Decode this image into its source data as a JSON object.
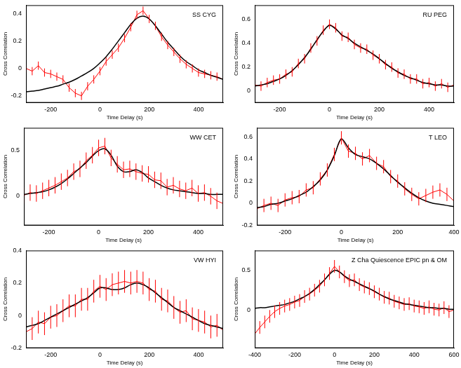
{
  "chart_data": [
    {
      "type": "line",
      "title": "SS CYG",
      "xlabel": "Time Delay (s)",
      "ylabel": "Cross Correlation",
      "grid": false,
      "x": [
        -300,
        -275,
        -250,
        -225,
        -200,
        -175,
        -150,
        -125,
        -100,
        -75,
        -50,
        -25,
        0,
        25,
        50,
        75,
        100,
        125,
        150,
        175,
        200,
        225,
        250,
        275,
        300,
        325,
        350,
        375,
        400,
        425,
        450,
        475,
        500
      ],
      "xlim": [
        -300,
        500
      ],
      "xticks": [
        -200,
        0,
        200,
        400
      ],
      "ylim": [
        -0.25,
        0.46
      ],
      "yticks": [
        -0.2,
        0,
        0.2,
        0.4
      ],
      "series": [
        {
          "color": "#ff0000",
          "line_style": "solid",
          "values": [
            0.0,
            -0.02,
            0.02,
            -0.03,
            -0.04,
            -0.06,
            -0.08,
            -0.14,
            -0.18,
            -0.2,
            -0.13,
            -0.08,
            -0.02,
            0.05,
            0.1,
            0.15,
            0.22,
            0.3,
            0.39,
            0.42,
            0.36,
            0.31,
            0.23,
            0.17,
            0.12,
            0.07,
            0.03,
            0.0,
            -0.03,
            -0.04,
            -0.05,
            -0.06,
            -0.08
          ],
          "errors": [
            0.03,
            0.03,
            0.03,
            0.03,
            0.03,
            0.03,
            0.03,
            0.03,
            0.03,
            0.03,
            0.03,
            0.03,
            0.03,
            0.03,
            0.03,
            0.03,
            0.03,
            0.03,
            0.03,
            0.03,
            0.03,
            0.03,
            0.03,
            0.03,
            0.03,
            0.03,
            0.03,
            0.03,
            0.03,
            0.03,
            0.03,
            0.03,
            0.03
          ]
        },
        {
          "color": "#000000",
          "line_style": "solid",
          "values": [
            -0.17,
            -0.165,
            -0.16,
            -0.15,
            -0.14,
            -0.13,
            -0.115,
            -0.1,
            -0.08,
            -0.055,
            -0.03,
            0.0,
            0.04,
            0.085,
            0.14,
            0.2,
            0.26,
            0.32,
            0.365,
            0.38,
            0.36,
            0.31,
            0.25,
            0.19,
            0.14,
            0.09,
            0.05,
            0.02,
            -0.01,
            -0.03,
            -0.05,
            -0.065,
            -0.08
          ]
        }
      ]
    },
    {
      "type": "line",
      "title": "RU PEG",
      "xlabel": "Time Delay (s)",
      "ylabel": "Cross Correlation",
      "grid": false,
      "x": [
        -300,
        -275,
        -250,
        -225,
        -200,
        -175,
        -150,
        -125,
        -100,
        -75,
        -50,
        -25,
        0,
        25,
        50,
        75,
        100,
        125,
        150,
        175,
        200,
        225,
        250,
        275,
        300,
        325,
        350,
        375,
        400,
        425,
        450,
        475,
        500
      ],
      "xlim": [
        -300,
        500
      ],
      "xticks": [
        -200,
        0,
        200,
        400
      ],
      "ylim": [
        -0.1,
        0.72
      ],
      "yticks": [
        0,
        0.2,
        0.4,
        0.6
      ],
      "series": [
        {
          "color": "#ff0000",
          "line_style": "solid",
          "values": [
            0.05,
            0.04,
            0.07,
            0.09,
            0.1,
            0.14,
            0.16,
            0.23,
            0.27,
            0.36,
            0.42,
            0.51,
            0.56,
            0.53,
            0.46,
            0.45,
            0.39,
            0.36,
            0.35,
            0.3,
            0.27,
            0.22,
            0.2,
            0.15,
            0.14,
            0.1,
            0.1,
            0.06,
            0.07,
            0.04,
            0.06,
            0.03,
            0.05
          ],
          "errors": [
            0.04,
            0.04,
            0.04,
            0.04,
            0.04,
            0.04,
            0.04,
            0.04,
            0.04,
            0.04,
            0.04,
            0.04,
            0.04,
            0.04,
            0.04,
            0.04,
            0.04,
            0.04,
            0.04,
            0.04,
            0.04,
            0.04,
            0.04,
            0.04,
            0.04,
            0.04,
            0.04,
            0.04,
            0.04,
            0.04,
            0.04,
            0.04,
            0.04
          ]
        },
        {
          "color": "#000000",
          "line_style": "solid",
          "values": [
            0.04,
            0.05,
            0.06,
            0.08,
            0.1,
            0.13,
            0.17,
            0.22,
            0.28,
            0.35,
            0.43,
            0.5,
            0.55,
            0.52,
            0.47,
            0.44,
            0.4,
            0.37,
            0.34,
            0.31,
            0.27,
            0.23,
            0.19,
            0.16,
            0.13,
            0.11,
            0.09,
            0.07,
            0.06,
            0.05,
            0.05,
            0.04,
            0.04
          ]
        }
      ]
    },
    {
      "type": "line",
      "title": "WW CET",
      "xlabel": "Time Delay (s)",
      "ylabel": "Cross Correlation",
      "grid": false,
      "x": [
        -300,
        -275,
        -250,
        -225,
        -200,
        -175,
        -150,
        -125,
        -100,
        -75,
        -50,
        -25,
        0,
        25,
        50,
        75,
        100,
        125,
        150,
        175,
        200,
        225,
        250,
        275,
        300,
        325,
        350,
        375,
        400,
        425,
        450,
        475,
        500
      ],
      "xlim": [
        -300,
        500
      ],
      "xticks": [
        -200,
        0,
        200,
        400
      ],
      "ylim": [
        -0.32,
        0.75
      ],
      "yticks": [
        0,
        0.5
      ],
      "series": [
        {
          "color": "#ff0000",
          "line_style": "solid",
          "values": [
            0.01,
            0.04,
            0.03,
            0.06,
            0.09,
            0.12,
            0.16,
            0.2,
            0.27,
            0.3,
            0.39,
            0.45,
            0.53,
            0.55,
            0.42,
            0.35,
            0.29,
            0.3,
            0.27,
            0.25,
            0.24,
            0.18,
            0.17,
            0.1,
            0.12,
            0.08,
            0.06,
            0.09,
            0.03,
            0.04,
            0.0,
            -0.05,
            -0.08
          ],
          "errors": [
            0.09,
            0.09,
            0.09,
            0.09,
            0.09,
            0.09,
            0.09,
            0.09,
            0.09,
            0.09,
            0.09,
            0.09,
            0.09,
            0.09,
            0.09,
            0.09,
            0.09,
            0.09,
            0.09,
            0.09,
            0.09,
            0.09,
            0.09,
            0.09,
            0.09,
            0.09,
            0.09,
            0.09,
            0.09,
            0.09,
            0.09,
            0.09,
            0.09
          ]
        },
        {
          "color": "#000000",
          "line_style": "solid",
          "values": [
            0.02,
            0.03,
            0.04,
            0.05,
            0.07,
            0.1,
            0.14,
            0.19,
            0.25,
            0.31,
            0.37,
            0.44,
            0.5,
            0.52,
            0.45,
            0.33,
            0.27,
            0.27,
            0.29,
            0.26,
            0.2,
            0.16,
            0.12,
            0.09,
            0.07,
            0.06,
            0.05,
            0.04,
            0.03,
            0.03,
            0.02,
            0.02,
            0.02
          ]
        }
      ]
    },
    {
      "type": "line",
      "title": "T LEO",
      "xlabel": "Time Delay (s)",
      "ylabel": "Cross Correlation",
      "grid": false,
      "x": [
        -300,
        -275,
        -250,
        -225,
        -200,
        -175,
        -150,
        -125,
        -100,
        -75,
        -50,
        -25,
        0,
        25,
        50,
        75,
        100,
        125,
        150,
        175,
        200,
        225,
        250,
        275,
        300,
        325,
        350,
        375,
        400
      ],
      "xlim": [
        -300,
        400
      ],
      "xticks": [
        -200,
        0,
        200,
        400
      ],
      "ylim": [
        -0.2,
        0.68
      ],
      "yticks": [
        -0.2,
        0,
        0.2,
        0.4,
        0.6
      ],
      "series": [
        {
          "color": "#ff0000",
          "line_style": "solid",
          "values": [
            -0.05,
            -0.02,
            0.0,
            -0.02,
            0.03,
            0.05,
            0.06,
            0.12,
            0.14,
            0.22,
            0.3,
            0.44,
            0.59,
            0.47,
            0.45,
            0.4,
            0.43,
            0.36,
            0.33,
            0.24,
            0.2,
            0.13,
            0.08,
            0.04,
            0.07,
            0.1,
            0.12,
            0.08,
            0.02
          ],
          "errors": [
            0.06,
            0.06,
            0.06,
            0.06,
            0.06,
            0.06,
            0.06,
            0.06,
            0.06,
            0.06,
            0.06,
            0.06,
            0.06,
            0.06,
            0.06,
            0.06,
            0.06,
            0.06,
            0.06,
            0.06,
            0.06,
            0.06,
            0.06,
            0.06,
            0.06,
            0.06,
            0.06,
            0.06,
            0.06
          ]
        },
        {
          "color": "#000000",
          "line_style": "solid",
          "values": [
            -0.04,
            -0.03,
            -0.01,
            0.0,
            0.02,
            0.04,
            0.07,
            0.1,
            0.15,
            0.21,
            0.3,
            0.43,
            0.58,
            0.5,
            0.44,
            0.42,
            0.4,
            0.36,
            0.31,
            0.25,
            0.19,
            0.14,
            0.09,
            0.05,
            0.02,
            0.0,
            -0.01,
            -0.02,
            -0.03
          ]
        }
      ]
    },
    {
      "type": "line",
      "title": "VW HYI",
      "xlabel": "Time Delay (s)",
      "ylabel": "Cross Correlation",
      "grid": false,
      "x": [
        -300,
        -275,
        -250,
        -225,
        -200,
        -175,
        -150,
        -125,
        -100,
        -75,
        -50,
        -25,
        0,
        25,
        50,
        75,
        100,
        125,
        150,
        175,
        200,
        225,
        250,
        275,
        300,
        325,
        350,
        375,
        400,
        425,
        450,
        475,
        500
      ],
      "xlim": [
        -300,
        500
      ],
      "xticks": [
        -200,
        0,
        200,
        400
      ],
      "ylim": [
        -0.2,
        0.4
      ],
      "yticks": [
        -0.2,
        0,
        0.2,
        0.4
      ],
      "series": [
        {
          "color": "#ff0000",
          "line_style": "solid",
          "values": [
            -0.1,
            -0.08,
            -0.04,
            -0.05,
            -0.01,
            0.0,
            0.03,
            0.06,
            0.06,
            0.1,
            0.1,
            0.15,
            0.18,
            0.16,
            0.19,
            0.2,
            0.21,
            0.2,
            0.21,
            0.2,
            0.16,
            0.15,
            0.1,
            0.09,
            0.05,
            0.02,
            0.03,
            -0.02,
            -0.03,
            -0.04,
            -0.07,
            -0.06,
            -0.09
          ],
          "errors": [
            0.07,
            0.07,
            0.07,
            0.07,
            0.07,
            0.07,
            0.07,
            0.07,
            0.07,
            0.07,
            0.07,
            0.07,
            0.07,
            0.07,
            0.07,
            0.07,
            0.07,
            0.07,
            0.07,
            0.07,
            0.07,
            0.07,
            0.07,
            0.07,
            0.07,
            0.07,
            0.07,
            0.07,
            0.07,
            0.07,
            0.07,
            0.07,
            0.07
          ]
        },
        {
          "color": "#000000",
          "line_style": "solid",
          "values": [
            -0.07,
            -0.06,
            -0.05,
            -0.03,
            -0.01,
            0.01,
            0.03,
            0.05,
            0.07,
            0.09,
            0.11,
            0.14,
            0.17,
            0.17,
            0.16,
            0.16,
            0.17,
            0.19,
            0.2,
            0.19,
            0.17,
            0.14,
            0.11,
            0.08,
            0.05,
            0.03,
            0.01,
            -0.01,
            -0.03,
            -0.05,
            -0.06,
            -0.07,
            -0.08
          ]
        }
      ]
    },
    {
      "type": "line",
      "title": "Z Cha Quiescence EPIC pn & OM",
      "xlabel": "Time Delay (s)",
      "ylabel": "Cross Correlation",
      "grid": false,
      "x": [
        -400,
        -375,
        -350,
        -325,
        -300,
        -275,
        -250,
        -225,
        -200,
        -175,
        -150,
        -125,
        -100,
        -75,
        -50,
        -25,
        0,
        25,
        50,
        75,
        100,
        125,
        150,
        175,
        200,
        225,
        250,
        275,
        300,
        325,
        350,
        375,
        400,
        425,
        450,
        475,
        500,
        525,
        550,
        575,
        600
      ],
      "xlim": [
        -400,
        600
      ],
      "xticks": [
        -400,
        -200,
        0,
        200,
        400,
        600
      ],
      "ylim": [
        -0.48,
        0.75
      ],
      "yticks": [
        0,
        0.5
      ],
      "series": [
        {
          "color": "#ff0000",
          "line_style": "solid",
          "values": [
            -0.3,
            -0.22,
            -0.15,
            -0.08,
            -0.02,
            0.02,
            0.05,
            0.07,
            0.1,
            0.12,
            0.17,
            0.2,
            0.25,
            0.3,
            0.38,
            0.46,
            0.55,
            0.48,
            0.42,
            0.37,
            0.38,
            0.32,
            0.29,
            0.27,
            0.23,
            0.2,
            0.16,
            0.15,
            0.11,
            0.09,
            0.07,
            0.08,
            0.05,
            0.04,
            0.02,
            0.04,
            0.01,
            0.0,
            0.03,
            -0.02,
            0.0
          ],
          "errors": [
            0.08,
            0.08,
            0.08,
            0.08,
            0.08,
            0.08,
            0.08,
            0.08,
            0.08,
            0.08,
            0.08,
            0.08,
            0.08,
            0.08,
            0.08,
            0.08,
            0.08,
            0.08,
            0.08,
            0.08,
            0.08,
            0.08,
            0.08,
            0.08,
            0.08,
            0.08,
            0.08,
            0.08,
            0.08,
            0.08,
            0.08,
            0.08,
            0.08,
            0.08,
            0.08,
            0.08,
            0.08,
            0.08,
            0.08,
            0.08,
            0.08
          ]
        },
        {
          "color": "#000000",
          "line_style": "solid",
          "values": [
            0.02,
            0.03,
            0.03,
            0.04,
            0.05,
            0.06,
            0.07,
            0.09,
            0.11,
            0.14,
            0.17,
            0.21,
            0.26,
            0.32,
            0.38,
            0.45,
            0.5,
            0.48,
            0.43,
            0.39,
            0.36,
            0.33,
            0.3,
            0.27,
            0.24,
            0.2,
            0.17,
            0.14,
            0.12,
            0.1,
            0.08,
            0.07,
            0.06,
            0.05,
            0.04,
            0.03,
            0.03,
            0.02,
            0.02,
            0.01,
            0.01
          ]
        }
      ]
    }
  ]
}
